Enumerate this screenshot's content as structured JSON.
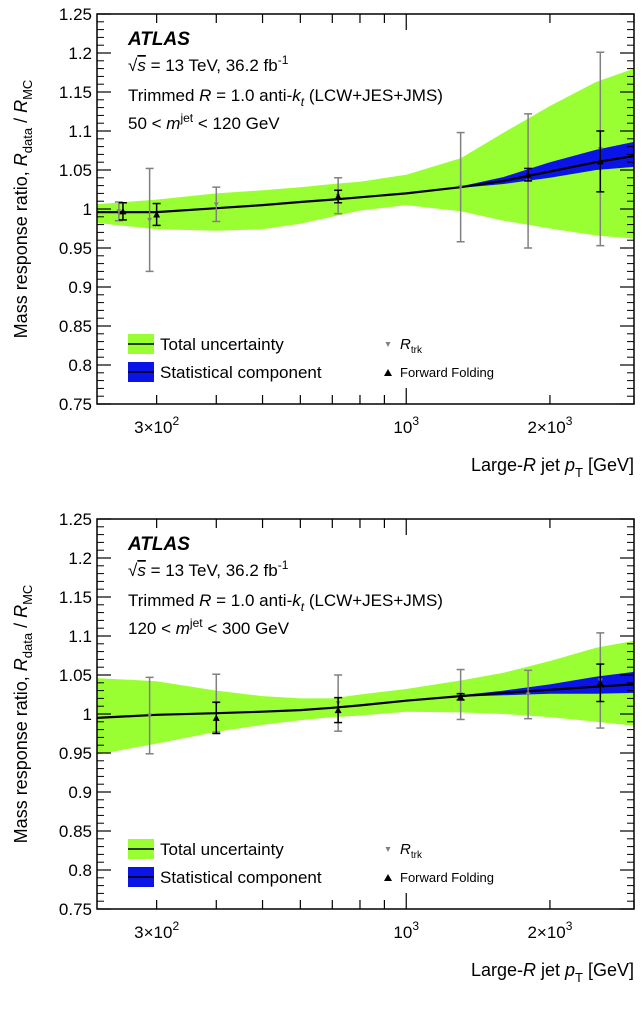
{
  "chart_data": [
    {
      "type": "line",
      "ylabel_parts": {
        "main": "Mass response ratio, ",
        "r1": "R",
        "s1": "data",
        "sep": " / ",
        "r2": "R",
        "s2": "MC"
      },
      "xlabel_parts": {
        "a": "Large-",
        "r": "R",
        "b": " jet ",
        "p": "p",
        "sub": "T",
        "unit": " [GeV]"
      },
      "ylim": [
        0.75,
        1.25
      ],
      "xlim": [
        225,
        3000
      ],
      "xscale": "log",
      "y_ticks": [
        "0.75",
        "0.8",
        "0.85",
        "0.9",
        "0.95",
        "1",
        "1.05",
        "1.1",
        "1.15",
        "1.2",
        "1.25"
      ],
      "x_tick_labels": [
        {
          "x": 300,
          "mant": "3×10",
          "exp": "2"
        },
        {
          "x": 1000,
          "mant": "10",
          "exp": "3"
        },
        {
          "x": 2000,
          "mant": "2×10",
          "exp": "3"
        }
      ],
      "atlas": {
        "label": "ATLAS",
        "energy_sqrt": "√",
        "energy_s": "s",
        "energy_rest": " = 13 TeV, 36.2 fb",
        "lumi_exp": "-1",
        "jets_a": "Trimmed ",
        "jets_r": "R",
        "jets_b": " = 1.0 anti-",
        "jets_k": "k",
        "jets_t": "t",
        "jets_c": " (LCW+JES+JMS)",
        "mass_a": "50 < ",
        "mass_m": "m",
        "mass_sup": "jet",
        "mass_b": " < 120 GeV"
      },
      "legend": {
        "total": "Total uncertainty",
        "stat": "Statistical component",
        "rtrk_r": "R",
        "rtrk_sub": "trk",
        "ff": "Forward Folding"
      },
      "colors": {
        "total": "#99ff33",
        "stat": "#0a14e6",
        "curve": "#000000",
        "rtrk": "#808080",
        "ff": "#000000"
      },
      "curve": {
        "x": [
          225,
          300,
          400,
          500,
          600,
          700,
          800,
          1000,
          1300,
          1600,
          2000,
          2500,
          3000
        ],
        "y": [
          0.996,
          0.996,
          1.001,
          1.005,
          1.009,
          1.012,
          1.015,
          1.02,
          1.028,
          1.036,
          1.048,
          1.06,
          1.068
        ]
      },
      "total_band": {
        "x": [
          225,
          300,
          400,
          500,
          600,
          700,
          800,
          1000,
          1300,
          1600,
          2000,
          2500,
          3000
        ],
        "low": [
          0.982,
          0.974,
          0.972,
          0.974,
          0.981,
          0.99,
          0.998,
          1.005,
          0.997,
          0.985,
          0.975,
          0.966,
          0.962
        ],
        "high": [
          1.006,
          1.012,
          1.02,
          1.024,
          1.028,
          1.032,
          1.035,
          1.044,
          1.065,
          1.098,
          1.132,
          1.163,
          1.18
        ]
      },
      "stat_band": {
        "x": [
          1300,
          1600,
          2000,
          2500,
          3000
        ],
        "low": [
          1.027,
          1.032,
          1.04,
          1.05,
          1.054
        ],
        "high": [
          1.029,
          1.041,
          1.06,
          1.076,
          1.086
        ]
      },
      "rtrk": {
        "x": [
          250,
          290,
          400,
          720,
          1300,
          1800,
          2550
        ],
        "y": [
          0.997,
          0.986,
          1.006,
          1.017,
          1.028,
          1.036,
          1.077
        ],
        "err": [
          0.012,
          0.066,
          0.022,
          0.023,
          0.07,
          0.086,
          0.124
        ]
      },
      "ff": {
        "x": [
          255,
          300,
          720,
          1800,
          2550
        ],
        "y": [
          0.997,
          0.993,
          1.016,
          1.044,
          1.061
        ],
        "err": [
          0.011,
          0.014,
          0.008,
          0.008,
          0.039
        ]
      }
    },
    {
      "type": "line",
      "ylabel_parts": {
        "main": "Mass response ratio, ",
        "r1": "R",
        "s1": "data",
        "sep": " / ",
        "r2": "R",
        "s2": "MC"
      },
      "xlabel_parts": {
        "a": "Large-",
        "r": "R",
        "b": " jet ",
        "p": "p",
        "sub": "T",
        "unit": " [GeV]"
      },
      "ylim": [
        0.75,
        1.25
      ],
      "xlim": [
        225,
        3000
      ],
      "xscale": "log",
      "y_ticks": [
        "0.75",
        "0.8",
        "0.85",
        "0.9",
        "0.95",
        "1",
        "1.05",
        "1.1",
        "1.15",
        "1.2",
        "1.25"
      ],
      "x_tick_labels": [
        {
          "x": 300,
          "mant": "3×10",
          "exp": "2"
        },
        {
          "x": 1000,
          "mant": "10",
          "exp": "3"
        },
        {
          "x": 2000,
          "mant": "2×10",
          "exp": "3"
        }
      ],
      "atlas": {
        "label": "ATLAS",
        "energy_sqrt": "√",
        "energy_s": "s",
        "energy_rest": " = 13 TeV, 36.2 fb",
        "lumi_exp": "-1",
        "jets_a": "Trimmed ",
        "jets_r": "R",
        "jets_b": " = 1.0 anti-",
        "jets_k": "k",
        "jets_t": "t",
        "jets_c": " (LCW+JES+JMS)",
        "mass_a": "120 < ",
        "mass_m": "m",
        "mass_sup": "jet",
        "mass_b": " < 300 GeV"
      },
      "legend": {
        "total": "Total uncertainty",
        "stat": "Statistical component",
        "rtrk_r": "R",
        "rtrk_sub": "trk",
        "ff": "Forward Folding"
      },
      "colors": {
        "total": "#99ff33",
        "stat": "#0a14e6",
        "curve": "#000000",
        "rtrk": "#808080",
        "ff": "#000000"
      },
      "curve": {
        "x": [
          225,
          300,
          400,
          500,
          600,
          700,
          800,
          1000,
          1300,
          1600,
          2000,
          2500,
          3000
        ],
        "y": [
          0.995,
          0.999,
          1.001,
          1.003,
          1.005,
          1.008,
          1.011,
          1.017,
          1.023,
          1.027,
          1.031,
          1.035,
          1.038
        ]
      },
      "total_band": {
        "x": [
          225,
          300,
          400,
          500,
          600,
          700,
          800,
          1000,
          1300,
          1600,
          2000,
          2500,
          3000
        ],
        "low": [
          0.948,
          0.962,
          0.977,
          0.986,
          0.992,
          0.996,
          0.998,
          1.003,
          1.002,
          1.0,
          0.996,
          0.99,
          0.985
        ],
        "high": [
          1.046,
          1.042,
          1.03,
          1.023,
          1.02,
          1.02,
          1.025,
          1.032,
          1.043,
          1.053,
          1.068,
          1.085,
          1.094
        ]
      },
      "stat_band": {
        "x": [
          1300,
          1600,
          2000,
          2500,
          3000
        ],
        "low": [
          1.022,
          1.024,
          1.026,
          1.026,
          1.027
        ],
        "high": [
          1.024,
          1.03,
          1.038,
          1.048,
          1.054
        ]
      },
      "rtrk": {
        "x": [
          290,
          400,
          720,
          1300,
          1800,
          2550
        ],
        "y": [
          0.998,
          1.014,
          1.014,
          1.025,
          1.025,
          1.043
        ],
        "err": [
          0.049,
          0.037,
          0.036,
          0.032,
          0.031,
          0.061
        ]
      },
      "ff": {
        "x": [
          400,
          720,
          1300,
          2550
        ],
        "y": [
          0.995,
          1.005,
          1.022,
          1.04
        ],
        "err": [
          0.02,
          0.016,
          0.004,
          0.024
        ]
      }
    }
  ]
}
